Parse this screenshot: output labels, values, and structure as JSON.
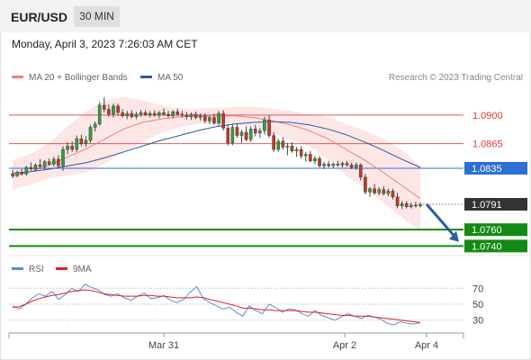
{
  "header": {
    "symbol": "EUR/USD",
    "timeframe": "30 MIN",
    "datetime": "Monday, April 3, 2023 7:26:03 AM CET"
  },
  "legend": {
    "bollinger_label": "MA 20 + Bollinger Bands",
    "bollinger_color": "#f08080",
    "ma50_label": "MA 50",
    "ma50_color": "#2d5aa0",
    "credit": "Research © 2023 Trading Central"
  },
  "rsi_legend": {
    "rsi_label": "RSI",
    "rsi_color": "#5b8dd9",
    "ma_label": "9MA",
    "ma_color": "#e02020"
  },
  "chart_data": [
    {
      "type": "candlestick",
      "title": "EUR/USD",
      "ylim": [
        1.0725,
        1.0935
      ],
      "price_levels": [
        {
          "value": 1.09,
          "label": "1.0900",
          "kind": "resistance",
          "color": "#e23b3b"
        },
        {
          "value": 1.0865,
          "label": "1.0865",
          "kind": "resistance",
          "color": "#e23b3b"
        },
        {
          "value": 1.0835,
          "label": "1.0835",
          "kind": "pivot",
          "color": "#2d6fd3"
        },
        {
          "value": 1.0791,
          "label": "1.0791",
          "kind": "last_price",
          "color": "#333333"
        },
        {
          "value": 1.076,
          "label": "1.0760",
          "kind": "support",
          "color": "#138a13"
        },
        {
          "value": 1.074,
          "label": "1.0740",
          "kind": "support",
          "color": "#138a13"
        }
      ],
      "forecast_arrow": {
        "from": 1.0791,
        "to": 1.0745,
        "direction": "down",
        "color": "#2a5d9f"
      },
      "candles": [
        [
          1.0828,
          1.0833,
          1.0823,
          1.0826
        ],
        [
          1.0826,
          1.0832,
          1.0824,
          1.083
        ],
        [
          1.083,
          1.0834,
          1.0826,
          1.0828
        ],
        [
          1.0828,
          1.0838,
          1.0826,
          1.0836
        ],
        [
          1.0836,
          1.0842,
          1.0832,
          1.0834
        ],
        [
          1.0834,
          1.0841,
          1.0831,
          1.0839
        ],
        [
          1.0839,
          1.0846,
          1.0834,
          1.0837
        ],
        [
          1.0837,
          1.0845,
          1.0833,
          1.0843
        ],
        [
          1.0843,
          1.0847,
          1.0838,
          1.084
        ],
        [
          1.084,
          1.0849,
          1.0837,
          1.0846
        ],
        [
          1.0846,
          1.0851,
          1.0836,
          1.0838
        ],
        [
          1.0838,
          1.0862,
          1.0832,
          1.0858
        ],
        [
          1.0858,
          1.0867,
          1.0852,
          1.0862
        ],
        [
          1.0862,
          1.0868,
          1.0855,
          1.0858
        ],
        [
          1.0858,
          1.0875,
          1.0855,
          1.0871
        ],
        [
          1.0871,
          1.0876,
          1.0862,
          1.0865
        ],
        [
          1.0865,
          1.0874,
          1.0861,
          1.0869
        ],
        [
          1.0869,
          1.0888,
          1.0866,
          1.0885
        ],
        [
          1.0885,
          1.0892,
          1.088,
          1.0889
        ],
        [
          1.0889,
          1.0916,
          1.0887,
          1.0912
        ],
        [
          1.0912,
          1.0922,
          1.0903,
          1.0907
        ],
        [
          1.0907,
          1.0913,
          1.0898,
          1.0901
        ],
        [
          1.0901,
          1.0914,
          1.0897,
          1.0911
        ],
        [
          1.0911,
          1.0914,
          1.0899,
          1.0903
        ],
        [
          1.0903,
          1.0907,
          1.0897,
          1.0899
        ],
        [
          1.0899,
          1.0905,
          1.0895,
          1.0902
        ],
        [
          1.0902,
          1.0906,
          1.0896,
          1.0898
        ],
        [
          1.0898,
          1.0904,
          1.0895,
          1.0901
        ],
        [
          1.0901,
          1.0906,
          1.0898,
          1.0903
        ],
        [
          1.0903,
          1.0906,
          1.0899,
          1.09
        ],
        [
          1.09,
          1.0905,
          1.0897,
          1.0902
        ],
        [
          1.0902,
          1.0906,
          1.0898,
          1.09
        ],
        [
          1.09,
          1.0905,
          1.0896,
          1.0903
        ],
        [
          1.0903,
          1.0908,
          1.0899,
          1.0901
        ],
        [
          1.0901,
          1.0905,
          1.0897,
          1.0899
        ],
        [
          1.0899,
          1.0906,
          1.0896,
          1.0904
        ],
        [
          1.0904,
          1.0908,
          1.0899,
          1.0901
        ],
        [
          1.0901,
          1.0905,
          1.0897,
          1.09
        ],
        [
          1.09,
          1.0904,
          1.0895,
          1.0898
        ],
        [
          1.0898,
          1.0903,
          1.0894,
          1.0901
        ],
        [
          1.0901,
          1.0904,
          1.0895,
          1.0897
        ],
        [
          1.0897,
          1.0902,
          1.0893,
          1.0899
        ],
        [
          1.0899,
          1.0902,
          1.089,
          1.0893
        ],
        [
          1.0893,
          1.0899,
          1.0889,
          1.0897
        ],
        [
          1.0897,
          1.0902,
          1.0888,
          1.089
        ],
        [
          1.089,
          1.0905,
          1.0886,
          1.0902
        ],
        [
          1.0902,
          1.0906,
          1.0881,
          1.0884
        ],
        [
          1.0884,
          1.0889,
          1.0863,
          1.0866
        ],
        [
          1.0866,
          1.0889,
          1.0863,
          1.0885
        ],
        [
          1.0885,
          1.0889,
          1.0872,
          1.0875
        ],
        [
          1.0875,
          1.0882,
          1.0866,
          1.0879
        ],
        [
          1.0879,
          1.0886,
          1.0868,
          1.087
        ],
        [
          1.087,
          1.0886,
          1.0867,
          1.0883
        ],
        [
          1.0883,
          1.0888,
          1.0874,
          1.0878
        ],
        [
          1.0878,
          1.0884,
          1.0872,
          1.0881
        ],
        [
          1.0881,
          1.0898,
          1.0876,
          1.0894
        ],
        [
          1.0894,
          1.09,
          1.0872,
          1.0875
        ],
        [
          1.0875,
          1.0879,
          1.0855,
          1.0858
        ],
        [
          1.0858,
          1.0871,
          1.0855,
          1.0868
        ],
        [
          1.0868,
          1.0873,
          1.0858,
          1.0861
        ],
        [
          1.0861,
          1.0866,
          1.0851,
          1.0862
        ],
        [
          1.0862,
          1.0867,
          1.0854,
          1.0856
        ],
        [
          1.0856,
          1.0861,
          1.0849,
          1.0858
        ],
        [
          1.0858,
          1.0862,
          1.0847,
          1.085
        ],
        [
          1.085,
          1.0855,
          1.0843,
          1.0852
        ],
        [
          1.0852,
          1.0856,
          1.0842,
          1.0844
        ],
        [
          1.0844,
          1.085,
          1.084,
          1.0847
        ],
        [
          1.0847,
          1.085,
          1.0836,
          1.0838
        ],
        [
          1.0838,
          1.0843,
          1.0834,
          1.084
        ],
        [
          1.084,
          1.0844,
          1.0836,
          1.0838
        ],
        [
          1.0838,
          1.0842,
          1.0835,
          1.084
        ],
        [
          1.084,
          1.0844,
          1.0837,
          1.0839
        ],
        [
          1.0839,
          1.0843,
          1.0836,
          1.0841
        ],
        [
          1.0841,
          1.0844,
          1.0837,
          1.0839
        ],
        [
          1.0839,
          1.0842,
          1.0834,
          1.0836
        ],
        [
          1.0836,
          1.0842,
          1.0833,
          1.0839
        ],
        [
          1.0839,
          1.0841,
          1.082,
          1.0824
        ],
        [
          1.0824,
          1.0828,
          1.0803,
          1.0806
        ],
        [
          1.0806,
          1.0812,
          1.08,
          1.081
        ],
        [
          1.081,
          1.0816,
          1.0803,
          1.0805
        ],
        [
          1.0805,
          1.0812,
          1.0802,
          1.0809
        ],
        [
          1.0809,
          1.0813,
          1.0802,
          1.0804
        ],
        [
          1.0804,
          1.081,
          1.0801,
          1.0807
        ],
        [
          1.0807,
          1.081,
          1.0797,
          1.08
        ],
        [
          1.08,
          1.0805,
          1.0786,
          1.0789
        ],
        [
          1.0789,
          1.0795,
          1.0785,
          1.0792
        ],
        [
          1.0792,
          1.0795,
          1.0786,
          1.0788
        ],
        [
          1.0788,
          1.0793,
          1.0786,
          1.079
        ],
        [
          1.079,
          1.0794,
          1.0787,
          1.0789
        ],
        [
          1.0789,
          1.0793,
          1.0787,
          1.0791
        ]
      ],
      "ma20": [
        1.0825,
        1.0831,
        1.0839,
        1.0849,
        1.0859,
        1.0871,
        1.0883,
        1.0891,
        1.0895,
        1.0898,
        1.0899,
        1.0899,
        1.0899,
        1.0897,
        1.0893,
        1.0888,
        1.0881,
        1.0871,
        1.0858,
        1.0845,
        1.083,
        1.0814,
        1.0798
      ],
      "bb_upper": [
        1.0845,
        1.0853,
        1.0866,
        1.0887,
        1.0905,
        1.0918,
        1.0922,
        1.0918,
        1.0912,
        1.0908,
        1.0908,
        1.0909,
        1.091,
        1.091,
        1.0908,
        1.0905,
        1.0901,
        1.0898,
        1.0889,
        1.0881,
        1.0871,
        1.0857,
        1.0838
      ],
      "bb_lower": [
        1.0809,
        1.0815,
        1.0823,
        1.0826,
        1.083,
        1.0841,
        1.0854,
        1.0867,
        1.0878,
        1.0885,
        1.0889,
        1.089,
        1.0889,
        1.0885,
        1.0877,
        1.087,
        1.0862,
        1.0846,
        1.0826,
        1.0811,
        1.0793,
        1.0775,
        1.0758
      ],
      "ma50": [
        1.0829,
        1.0831,
        1.0834,
        1.0838,
        1.0842,
        1.0848,
        1.0855,
        1.0862,
        1.0869,
        1.0875,
        1.0881,
        1.0886,
        1.0889,
        1.0891,
        1.0892,
        1.0891,
        1.0888,
        1.0883,
        1.0876,
        1.0867,
        1.0857,
        1.0846,
        1.0836
      ]
    },
    {
      "type": "line",
      "title": "RSI",
      "ylim": [
        15,
        85
      ],
      "yticks": [
        30,
        50,
        70
      ],
      "xticks": [
        "Mar 31",
        "Apr 2",
        "Apr 4"
      ],
      "series": [
        {
          "name": "RSI",
          "values": [
            48,
            44,
            50,
            58,
            63,
            60,
            66,
            56,
            62,
            70,
            66,
            75,
            71,
            68,
            62,
            60,
            63,
            58,
            55,
            60,
            64,
            57,
            58,
            61,
            55,
            52,
            56,
            65,
            72,
            57,
            52,
            48,
            44,
            46,
            40,
            35,
            48,
            42,
            38,
            50,
            46,
            40,
            44,
            43,
            38,
            35,
            42,
            36,
            33,
            30,
            34,
            38,
            35,
            32,
            36,
            34,
            31,
            26,
            24,
            28,
            26,
            25,
            27
          ]
        },
        {
          "name": "9MA",
          "values": [
            46,
            47,
            50,
            54,
            57,
            59,
            61,
            62,
            64,
            66,
            67,
            68,
            67,
            65,
            63,
            62,
            61,
            60,
            60,
            60,
            61,
            61,
            60,
            60,
            59,
            58,
            58,
            58,
            59,
            58,
            56,
            54,
            52,
            50,
            48,
            45,
            45,
            44,
            43,
            43,
            42,
            42,
            42,
            42,
            41,
            40,
            40,
            39,
            38,
            37,
            36,
            36,
            35,
            35,
            35,
            34,
            33,
            32,
            31,
            30,
            29,
            28,
            27
          ]
        }
      ]
    }
  ]
}
